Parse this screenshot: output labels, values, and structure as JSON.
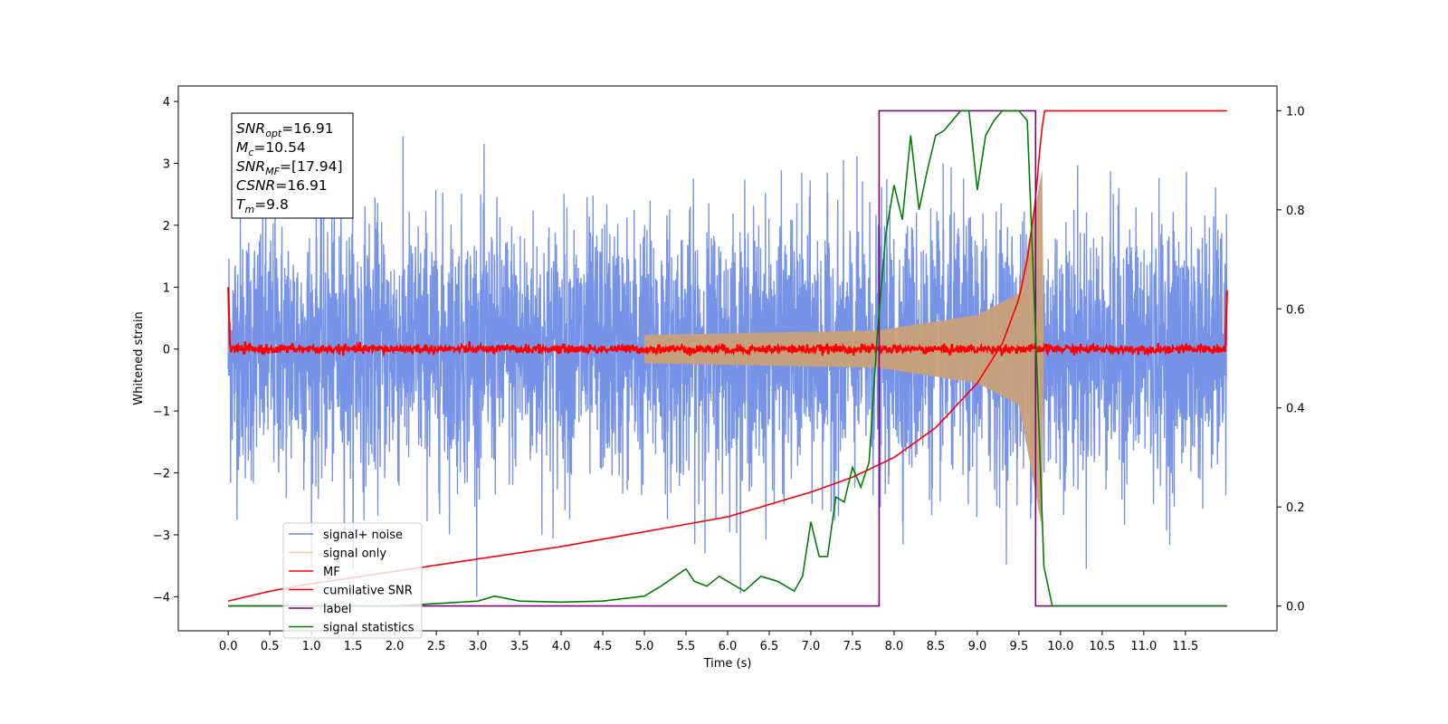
{
  "chart_data": {
    "type": "line",
    "xlabel": "Time (s)",
    "ylabel": "Whitened strain",
    "xlim": [
      -0.6,
      12.6
    ],
    "ylim": [
      -4.55,
      4.25
    ],
    "y2lim": [
      -0.05,
      1.05
    ],
    "xticks": [
      "0.0",
      "0.5",
      "1.0",
      "1.5",
      "2.0",
      "2.5",
      "3.0",
      "3.5",
      "4.0",
      "4.5",
      "5.0",
      "5.5",
      "6.0",
      "6.5",
      "7.0",
      "7.5",
      "8.0",
      "8.5",
      "9.0",
      "9.5",
      "10.0",
      "10.5",
      "11.0",
      "11.5"
    ],
    "yticks": [
      "4",
      "3",
      "2",
      "1",
      "0",
      "−1",
      "−2",
      "−3",
      "−4"
    ],
    "y2ticks": [
      "1.0",
      "0.8",
      "0.6",
      "0.4",
      "0.2",
      "0.0"
    ],
    "grid": false,
    "legend_position": "lower-left",
    "colors": {
      "noise": "#6b8ae6",
      "signal": "#c8a078",
      "mf": "#ff0000",
      "csnr": "#ff0000",
      "label": "#800080",
      "stats": "#008000"
    },
    "series": [
      {
        "name": "signal+ noise",
        "axis": "left",
        "description_values": {
          "amplitude_range": [
            -4.0,
            3.8
          ],
          "x_range": [
            0.0,
            12.0
          ]
        }
      },
      {
        "name": "signal only",
        "axis": "left",
        "values": {
          "x": [
            0,
            7.8,
            9.0,
            9.5,
            9.78
          ],
          "envelope": [
            0.1,
            0.3,
            0.55,
            0.9,
            2.9
          ]
        }
      },
      {
        "name": "MF",
        "axis": "left",
        "values": {
          "x": [
            0.0,
            0.02,
            6.0,
            9.8,
            11.98,
            12.0
          ],
          "y": [
            1.0,
            0.1,
            0.0,
            0.05,
            0.0,
            0.95
          ]
        }
      },
      {
        "name": "cumilative SNR",
        "axis": "right",
        "values": {
          "x": [
            0.0,
            0.5,
            1.0,
            2.0,
            3.0,
            4.0,
            5.0,
            6.0,
            7.0,
            7.5,
            8.0,
            8.5,
            9.0,
            9.3,
            9.5,
            9.6,
            9.7,
            9.75,
            9.8,
            12.0
          ],
          "y": [
            0.01,
            0.03,
            0.045,
            0.07,
            0.095,
            0.12,
            0.15,
            0.18,
            0.23,
            0.26,
            0.3,
            0.36,
            0.45,
            0.53,
            0.62,
            0.7,
            0.82,
            0.92,
            1.0,
            1.0
          ]
        }
      },
      {
        "name": "label",
        "axis": "right",
        "values": {
          "x": [
            0.0,
            7.82,
            7.82,
            9.7,
            9.7,
            12.0
          ],
          "y": [
            0.0,
            0.0,
            1.0,
            1.0,
            0.0,
            0.0
          ]
        }
      },
      {
        "name": "signal statistics",
        "axis": "right",
        "values": {
          "x": [
            0.0,
            0.5,
            1.0,
            1.5,
            2.0,
            2.5,
            3.0,
            3.2,
            3.5,
            4.0,
            4.5,
            5.0,
            5.2,
            5.5,
            5.6,
            5.75,
            5.9,
            6.0,
            6.2,
            6.4,
            6.6,
            6.8,
            6.9,
            7.0,
            7.1,
            7.2,
            7.3,
            7.4,
            7.5,
            7.6,
            7.7,
            7.8,
            7.9,
            8.0,
            8.1,
            8.2,
            8.3,
            8.4,
            8.5,
            8.6,
            8.7,
            8.8,
            8.9,
            9.0,
            9.1,
            9.2,
            9.3,
            9.4,
            9.5,
            9.6,
            9.7,
            9.8,
            9.9,
            10.0,
            11.0,
            12.0
          ],
          "y": [
            0.0,
            0.0,
            0.0,
            0.0,
            0.0,
            0.005,
            0.01,
            0.02,
            0.01,
            0.008,
            0.01,
            0.02,
            0.04,
            0.075,
            0.05,
            0.04,
            0.06,
            0.05,
            0.03,
            0.06,
            0.05,
            0.03,
            0.06,
            0.17,
            0.1,
            0.1,
            0.22,
            0.21,
            0.28,
            0.24,
            0.29,
            0.55,
            0.75,
            0.85,
            0.78,
            0.95,
            0.8,
            0.88,
            0.95,
            0.96,
            0.98,
            1.0,
            1.0,
            0.84,
            0.95,
            0.98,
            1.0,
            1.0,
            1.0,
            0.98,
            0.55,
            0.08,
            0.0,
            0.0,
            0.0,
            0.0
          ]
        }
      }
    ]
  },
  "info_box": {
    "lines": [
      {
        "main": "SNR",
        "sub": "opt",
        "rest": "=16.91"
      },
      {
        "main": "M",
        "sub": "c",
        "rest": "=10.54"
      },
      {
        "main": "SNR",
        "sub": "MF",
        "rest": "=[17.94]"
      },
      {
        "main": "CSNR",
        "sub": "",
        "rest": "=16.91"
      },
      {
        "main": "T",
        "sub": "m",
        "rest": "=9.8"
      }
    ]
  },
  "legend": {
    "items": [
      {
        "label": "signal+ noise",
        "color": "#6b8ae6"
      },
      {
        "label": "signal only",
        "color": "#f5b042"
      },
      {
        "label": "MF",
        "color": "#ff0000"
      },
      {
        "label": "cumilative SNR",
        "color": "#ff0000"
      },
      {
        "label": "label",
        "color": "#800080"
      },
      {
        "label": "signal statistics",
        "color": "#008000"
      }
    ]
  }
}
